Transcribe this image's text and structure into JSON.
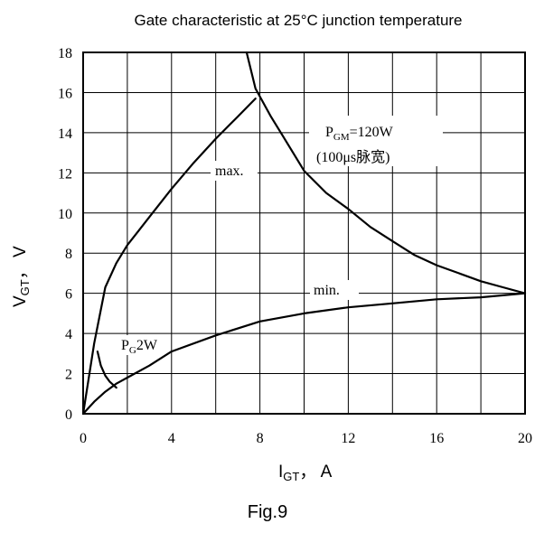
{
  "chart_data": {
    "type": "line",
    "title": "Gate characteristic at 25°C junction temperature",
    "xlabel": {
      "main": "I",
      "sub": "GT",
      "rest": "， A"
    },
    "ylabel": {
      "main": "V",
      "sub": "GT",
      "rest": "， V"
    },
    "xlim": [
      0,
      20
    ],
    "ylim": [
      0,
      18
    ],
    "grid": true,
    "x_ticks": [
      0,
      4,
      8,
      12,
      16,
      20
    ],
    "y_ticks": [
      0,
      2,
      4,
      6,
      8,
      10,
      12,
      14,
      16,
      18
    ],
    "x_tick_labels": [
      "0",
      "4",
      "8",
      "12",
      "16",
      "20"
    ],
    "y_tick_labels": [
      "0",
      "2",
      "4",
      "6",
      "8",
      "10",
      "12",
      "14",
      "16",
      "18"
    ],
    "series": [
      {
        "name": "max.",
        "x": [
          0,
          0.5,
          1,
          1.5,
          2,
          2.5,
          3,
          4,
          5,
          6,
          7,
          7.8
        ],
        "y": [
          0,
          3.5,
          6.3,
          7.5,
          8.4,
          9.1,
          9.8,
          11.2,
          12.5,
          13.7,
          14.8,
          15.7
        ]
      },
      {
        "name": "min.",
        "x": [
          0,
          0.5,
          1,
          1.5,
          2,
          3,
          4,
          6,
          8,
          10,
          12,
          14,
          16,
          18,
          20
        ],
        "y": [
          0,
          0.6,
          1.1,
          1.5,
          1.8,
          2.4,
          3.1,
          3.9,
          4.6,
          5.0,
          5.3,
          5.5,
          5.7,
          5.8,
          6.0
        ]
      },
      {
        "name": "P_GM=120W",
        "x": [
          7.4,
          7.8,
          8.5,
          9,
          10,
          11,
          12,
          13,
          14,
          15,
          16,
          17,
          18,
          19,
          20
        ],
        "y": [
          18,
          16.2,
          14.8,
          13.9,
          12.1,
          11.0,
          10.2,
          9.3,
          8.6,
          7.9,
          7.4,
          7.0,
          6.6,
          6.3,
          6.0
        ]
      },
      {
        "name": "P_G2W",
        "x": [
          0.65,
          0.8,
          1.0,
          1.2,
          1.5
        ],
        "y": [
          3.1,
          2.4,
          1.9,
          1.6,
          1.3
        ]
      }
    ],
    "annotations": {
      "max": "max.",
      "min": "min.",
      "pgm_main": "P",
      "pgm_sub": "GM",
      "pgm_rest": "=120W",
      "pgm_note": "(100μs脉宽)",
      "pg_main": "P",
      "pg_sub": "G",
      "pg_rest": "2W"
    }
  },
  "caption": "Fig.9"
}
